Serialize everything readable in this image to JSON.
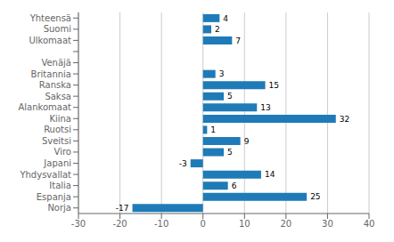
{
  "chart_data": {
    "type": "bar",
    "orientation": "horizontal",
    "categories": [
      "Yhteensä",
      "Suomi",
      "Ulkomaat",
      null,
      "Venäjä",
      "Britannia",
      "Ranska",
      "Saksa",
      "Alankomaat",
      "Kiina",
      "Ruotsi",
      "Sveitsi",
      "Viro",
      "Japani",
      "Yhdysvallat",
      "Italia",
      "Espanja",
      "Norja"
    ],
    "values": [
      4,
      2,
      7,
      null,
      0,
      3,
      15,
      5,
      13,
      32,
      1,
      9,
      5,
      -3,
      14,
      6,
      25,
      -17
    ],
    "color": "#1f7bb8",
    "xlim": [
      -30,
      40
    ],
    "xticks": [
      -30,
      -20,
      -10,
      0,
      10,
      20,
      30,
      40
    ],
    "grid": true,
    "data_labels": true
  }
}
